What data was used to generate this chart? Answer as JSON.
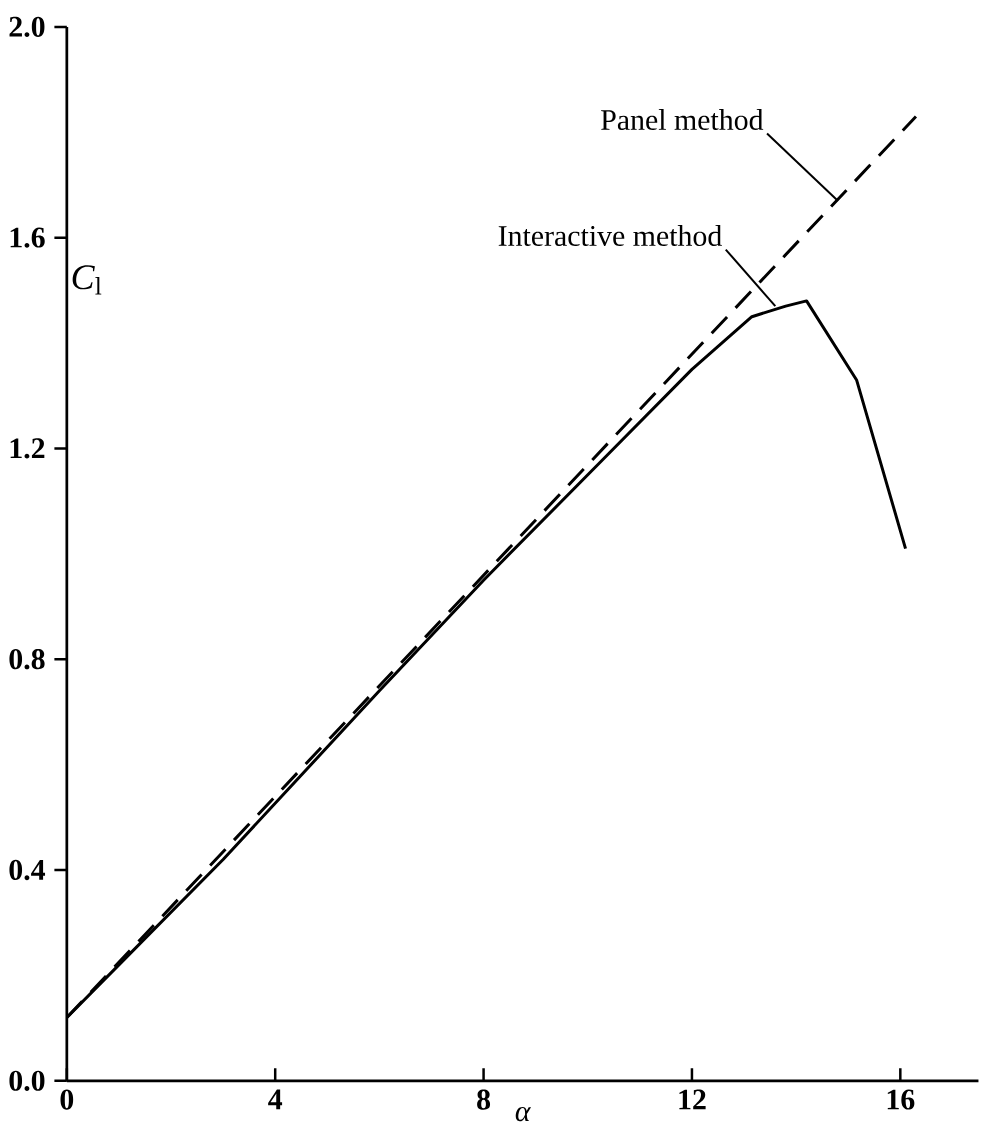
{
  "chart_data": {
    "type": "line",
    "xlabel": "α",
    "ylabel": "*C*$_{l}$",
    "xlim": [
      0,
      17.5
    ],
    "ylim": [
      0,
      2.0
    ],
    "xticks": [
      0,
      4,
      8,
      12,
      16
    ],
    "yticks": [
      {
        "value": 0,
        "label": "0.0"
      },
      {
        "value": 0.4,
        "label": "0.4"
      },
      {
        "value": 0.8,
        "label": "0.8"
      },
      {
        "value": 1.2,
        "label": "1.2"
      },
      {
        "value": 1.6,
        "label": "1.6"
      },
      {
        "value": 2.0,
        "label": "2.0"
      }
    ],
    "grid": false,
    "marker": "none",
    "series": [
      {
        "color": "#000000",
        "line_style": "dashed",
        "x": [
          0,
          16.3
        ],
        "values": [
          0.12,
          1.83
        ]
      },
      {
        "color": "#000000",
        "line_style": "solid",
        "x": [
          0,
          1,
          3,
          6,
          8,
          10.3,
          12,
          13.15,
          13.8,
          14.2,
          15.16,
          16.1
        ],
        "values": [
          0.12,
          0.22,
          0.42,
          0.74,
          0.95,
          1.18,
          1.35,
          1.45,
          1.47,
          1.48,
          1.33,
          1.01
        ]
      }
    ],
    "annotations": [
      {
        "text": "Panel method",
        "x": 14.8,
        "y": 1.67
      },
      {
        "text": "Interactive method",
        "x": 13.6,
        "y": 1.47
      }
    ]
  }
}
